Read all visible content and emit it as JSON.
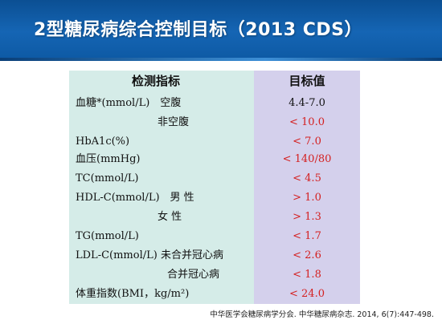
{
  "title": "2型糖尿病综合控制目标（2013 CDS）",
  "table": {
    "headers": {
      "indicator": "检测指标",
      "target": "目标值"
    },
    "rows": [
      {
        "indicator": "血糖*(mmol/L)　空腹",
        "target": "4.4-7.0",
        "color": "black"
      },
      {
        "indicator": "非空腹",
        "target": "< 10.0",
        "color": "red"
      },
      {
        "indicator": "HbA1c(%)",
        "target": "< 7.0",
        "color": "red"
      },
      {
        "indicator": "血压(mmHg)",
        "target": "< 140/80",
        "color": "red"
      },
      {
        "indicator": "TC(mmol/L)",
        "target": "< 4.5",
        "color": "red"
      },
      {
        "indicator": "HDL-C(mmol/L)　男 性",
        "target": "> 1.0",
        "color": "red"
      },
      {
        "indicator": "女 性",
        "target": "> 1.3",
        "color": "red"
      },
      {
        "indicator": "TG(mmol/L)",
        "target": "< 1.7",
        "color": "red"
      },
      {
        "indicator": "LDL-C(mmol/L) 未合并冠心病",
        "target": "< 2.6",
        "color": "red"
      },
      {
        "indicator": "合并冠心病",
        "target": "< 1.8",
        "color": "red"
      },
      {
        "indicator": "体重指数(BMI，kg/m²)",
        "target": "< 24.0",
        "color": "red"
      }
    ]
  },
  "footnote": "中华医学会糖尿病学分会. 中华糖尿病杂志. 2014, 6(7):447-498.",
  "colors": {
    "header_bg": "#1565b4",
    "left_column_bg": "#d5ece8",
    "right_column_bg": "#d4d0ec",
    "target_red": "#d42020"
  }
}
